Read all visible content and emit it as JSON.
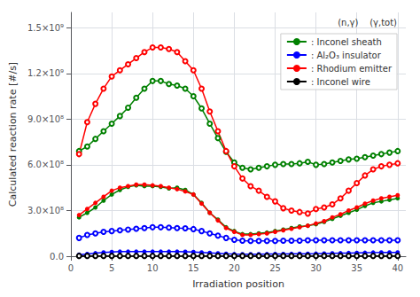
{
  "chart_data": {
    "type": "line",
    "xlabel": "Irradiation position",
    "ylabel": "Calculated reaction rate [#/s]",
    "xlim": [
      0,
      41
    ],
    "ylim": [
      0,
      1600000000.0
    ],
    "xticks": [
      0,
      5,
      10,
      15,
      20,
      25,
      30,
      35,
      40
    ],
    "yticks": [
      {
        "value": 0,
        "label": "0.0"
      },
      {
        "value": 300000000.0,
        "label": "3.0×10⁸"
      },
      {
        "value": 600000000.0,
        "label": "6.0×10⁸"
      },
      {
        "value": 900000000.0,
        "label": "9.0×10⁸"
      },
      {
        "value": 1200000000.0,
        "label": "1.2×10⁹"
      },
      {
        "value": 1500000000.0,
        "label": "1.5×10⁹"
      }
    ],
    "grid": true,
    "legend": "upper right",
    "legend_title": "(n,γ)    (γ,tot)",
    "x": [
      1,
      2,
      3,
      4,
      5,
      6,
      7,
      8,
      9,
      10,
      11,
      12,
      13,
      14,
      15,
      16,
      17,
      18,
      19,
      20,
      21,
      22,
      23,
      24,
      25,
      26,
      27,
      28,
      29,
      30,
      31,
      32,
      33,
      34,
      35,
      36,
      37,
      38,
      39,
      40
    ],
    "series": [
      {
        "name": ": Inconel sheath",
        "color": "#008000",
        "marker": "circle",
        "line_style": "solid",
        "values": [
          255000000.0,
          285000000.0,
          320000000.0,
          365000000.0,
          405000000.0,
          435000000.0,
          455000000.0,
          465000000.0,
          460000000.0,
          460000000.0,
          455000000.0,
          445000000.0,
          450000000.0,
          435000000.0,
          405000000.0,
          350000000.0,
          285000000.0,
          240000000.0,
          190000000.0,
          165000000.0,
          145000000.0,
          145000000.0,
          150000000.0,
          155000000.0,
          165000000.0,
          175000000.0,
          185000000.0,
          195000000.0,
          200000000.0,
          210000000.0,
          225000000.0,
          245000000.0,
          265000000.0,
          285000000.0,
          305000000.0,
          330000000.0,
          350000000.0,
          360000000.0,
          370000000.0,
          380000000.0
        ]
      },
      {
        "name": ": Inconel sheath",
        "color": "#008000",
        "marker": "emptyCircle",
        "line_style": "solid",
        "values": [
          690000000.0,
          720000000.0,
          770000000.0,
          820000000.0,
          870000000.0,
          920000000.0,
          975000000.0,
          1040000000.0,
          1100000000.0,
          1150000000.0,
          1150000000.0,
          1130000000.0,
          1120000000.0,
          1100000000.0,
          1050000000.0,
          970000000.0,
          870000000.0,
          775000000.0,
          685000000.0,
          615000000.0,
          580000000.0,
          570000000.0,
          580000000.0,
          590000000.0,
          600000000.0,
          605000000.0,
          605000000.0,
          610000000.0,
          620000000.0,
          600000000.0,
          605000000.0,
          615000000.0,
          625000000.0,
          635000000.0,
          640000000.0,
          650000000.0,
          660000000.0,
          670000000.0,
          680000000.0,
          690000000.0
        ]
      },
      {
        "name": ": Al₂O₃ insulator",
        "color": "#0000FF",
        "marker": "circle",
        "line_style": "solid",
        "values": [
          10000000.0,
          15000000.0,
          20000000.0,
          25000000.0,
          28000000.0,
          30000000.0,
          30000000.0,
          30000000.0,
          30000000.0,
          30000000.0,
          30000000.0,
          30000000.0,
          30000000.0,
          29000000.0,
          28000000.0,
          25000000.0,
          22000000.0,
          19000000.0,
          16000000.0,
          14000000.0,
          13000000.0,
          13000000.0,
          13500000.0,
          14000000.0,
          14500000.0,
          15000000.0,
          15500000.0,
          16000000.0,
          16500000.0,
          17000000.0,
          18000000.0,
          19000000.0,
          20000000.0,
          21000000.0,
          22000000.0,
          23000000.0,
          24000000.0,
          24500000.0,
          25000000.0,
          25000000.0
        ]
      },
      {
        "name": ": Al₂O₃ insulator",
        "color": "#0000FF",
        "marker": "emptyCircle",
        "line_style": "solid",
        "values": [
          120000000.0,
          140000000.0,
          150000000.0,
          160000000.0,
          165000000.0,
          170000000.0,
          175000000.0,
          180000000.0,
          185000000.0,
          190000000.0,
          190000000.0,
          188000000.0,
          185000000.0,
          183000000.0,
          178000000.0,
          165000000.0,
          150000000.0,
          135000000.0,
          120000000.0,
          108000000.0,
          102000000.0,
          100000000.0,
          100000000.0,
          100000000.0,
          100000000.0,
          102000000.0,
          102000000.0,
          102000000.0,
          105000000.0,
          105000000.0,
          105000000.0,
          105000000.0,
          105000000.0,
          105000000.0,
          105000000.0,
          105000000.0,
          105000000.0,
          105000000.0,
          105000000.0,
          105000000.0
        ]
      },
      {
        "name": ": Rhodium emitter",
        "color": "#FF0000",
        "marker": "circle",
        "line_style": "solid",
        "values": [
          270000000.0,
          310000000.0,
          350000000.0,
          390000000.0,
          430000000.0,
          450000000.0,
          460000000.0,
          470000000.0,
          470000000.0,
          465000000.0,
          460000000.0,
          450000000.0,
          440000000.0,
          425000000.0,
          405000000.0,
          345000000.0,
          285000000.0,
          235000000.0,
          185000000.0,
          160000000.0,
          140000000.0,
          140000000.0,
          145000000.0,
          150000000.0,
          160000000.0,
          170000000.0,
          180000000.0,
          190000000.0,
          200000000.0,
          215000000.0,
          230000000.0,
          255000000.0,
          275000000.0,
          300000000.0,
          320000000.0,
          345000000.0,
          365000000.0,
          380000000.0,
          390000000.0,
          400000000.0
        ]
      },
      {
        "name": ": Rhodium emitter",
        "color": "#FF0000",
        "marker": "emptyCircle",
        "line_style": "solid",
        "values": [
          670000000.0,
          880000000.0,
          1000000000.0,
          1100000000.0,
          1180000000.0,
          1220000000.0,
          1260000000.0,
          1300000000.0,
          1340000000.0,
          1370000000.0,
          1370000000.0,
          1360000000.0,
          1340000000.0,
          1280000000.0,
          1220000000.0,
          1100000000.0,
          950000000.0,
          820000000.0,
          690000000.0,
          590000000.0,
          510000000.0,
          460000000.0,
          430000000.0,
          390000000.0,
          360000000.0,
          315000000.0,
          300000000.0,
          290000000.0,
          280000000.0,
          310000000.0,
          320000000.0,
          340000000.0,
          380000000.0,
          430000000.0,
          480000000.0,
          530000000.0,
          570000000.0,
          590000000.0,
          600000000.0,
          610000000.0
        ]
      },
      {
        "name": ": Inconel wire",
        "color": "#000000",
        "marker": "circle",
        "line_style": "solid",
        "values": [
          2000000.0,
          2000000.0,
          2000000.0,
          2000000.0,
          2000000.0,
          2000000.0,
          2000000.0,
          2000000.0,
          2000000.0,
          2000000.0,
          2000000.0,
          2000000.0,
          2000000.0,
          2000000.0,
          2000000.0,
          2000000.0,
          2000000.0,
          2000000.0,
          2000000.0,
          2000000.0,
          2000000.0,
          2000000.0,
          2000000.0,
          2000000.0,
          2000000.0,
          2000000.0,
          2000000.0,
          2000000.0,
          2000000.0,
          2000000.0,
          2000000.0,
          2000000.0,
          2000000.0,
          2000000.0,
          2000000.0,
          2000000.0,
          2000000.0,
          2000000.0,
          2000000.0,
          2000000.0
        ]
      },
      {
        "name": ": Inconel wire",
        "color": "#000000",
        "marker": "emptyCircle",
        "line_style": "solid",
        "values": [
          2000000.0,
          2000000.0,
          2000000.0,
          2000000.0,
          2000000.0,
          2000000.0,
          2000000.0,
          2000000.0,
          2000000.0,
          2000000.0,
          2000000.0,
          2000000.0,
          2000000.0,
          2000000.0,
          2000000.0,
          2000000.0,
          2000000.0,
          2000000.0,
          2000000.0,
          2000000.0,
          2000000.0,
          2000000.0,
          2000000.0,
          2000000.0,
          2000000.0,
          2000000.0,
          2000000.0,
          2000000.0,
          2000000.0,
          2000000.0,
          2000000.0,
          2000000.0,
          2000000.0,
          2000000.0,
          2000000.0,
          2000000.0,
          2000000.0,
          2000000.0,
          2000000.0,
          2000000.0
        ]
      }
    ]
  }
}
